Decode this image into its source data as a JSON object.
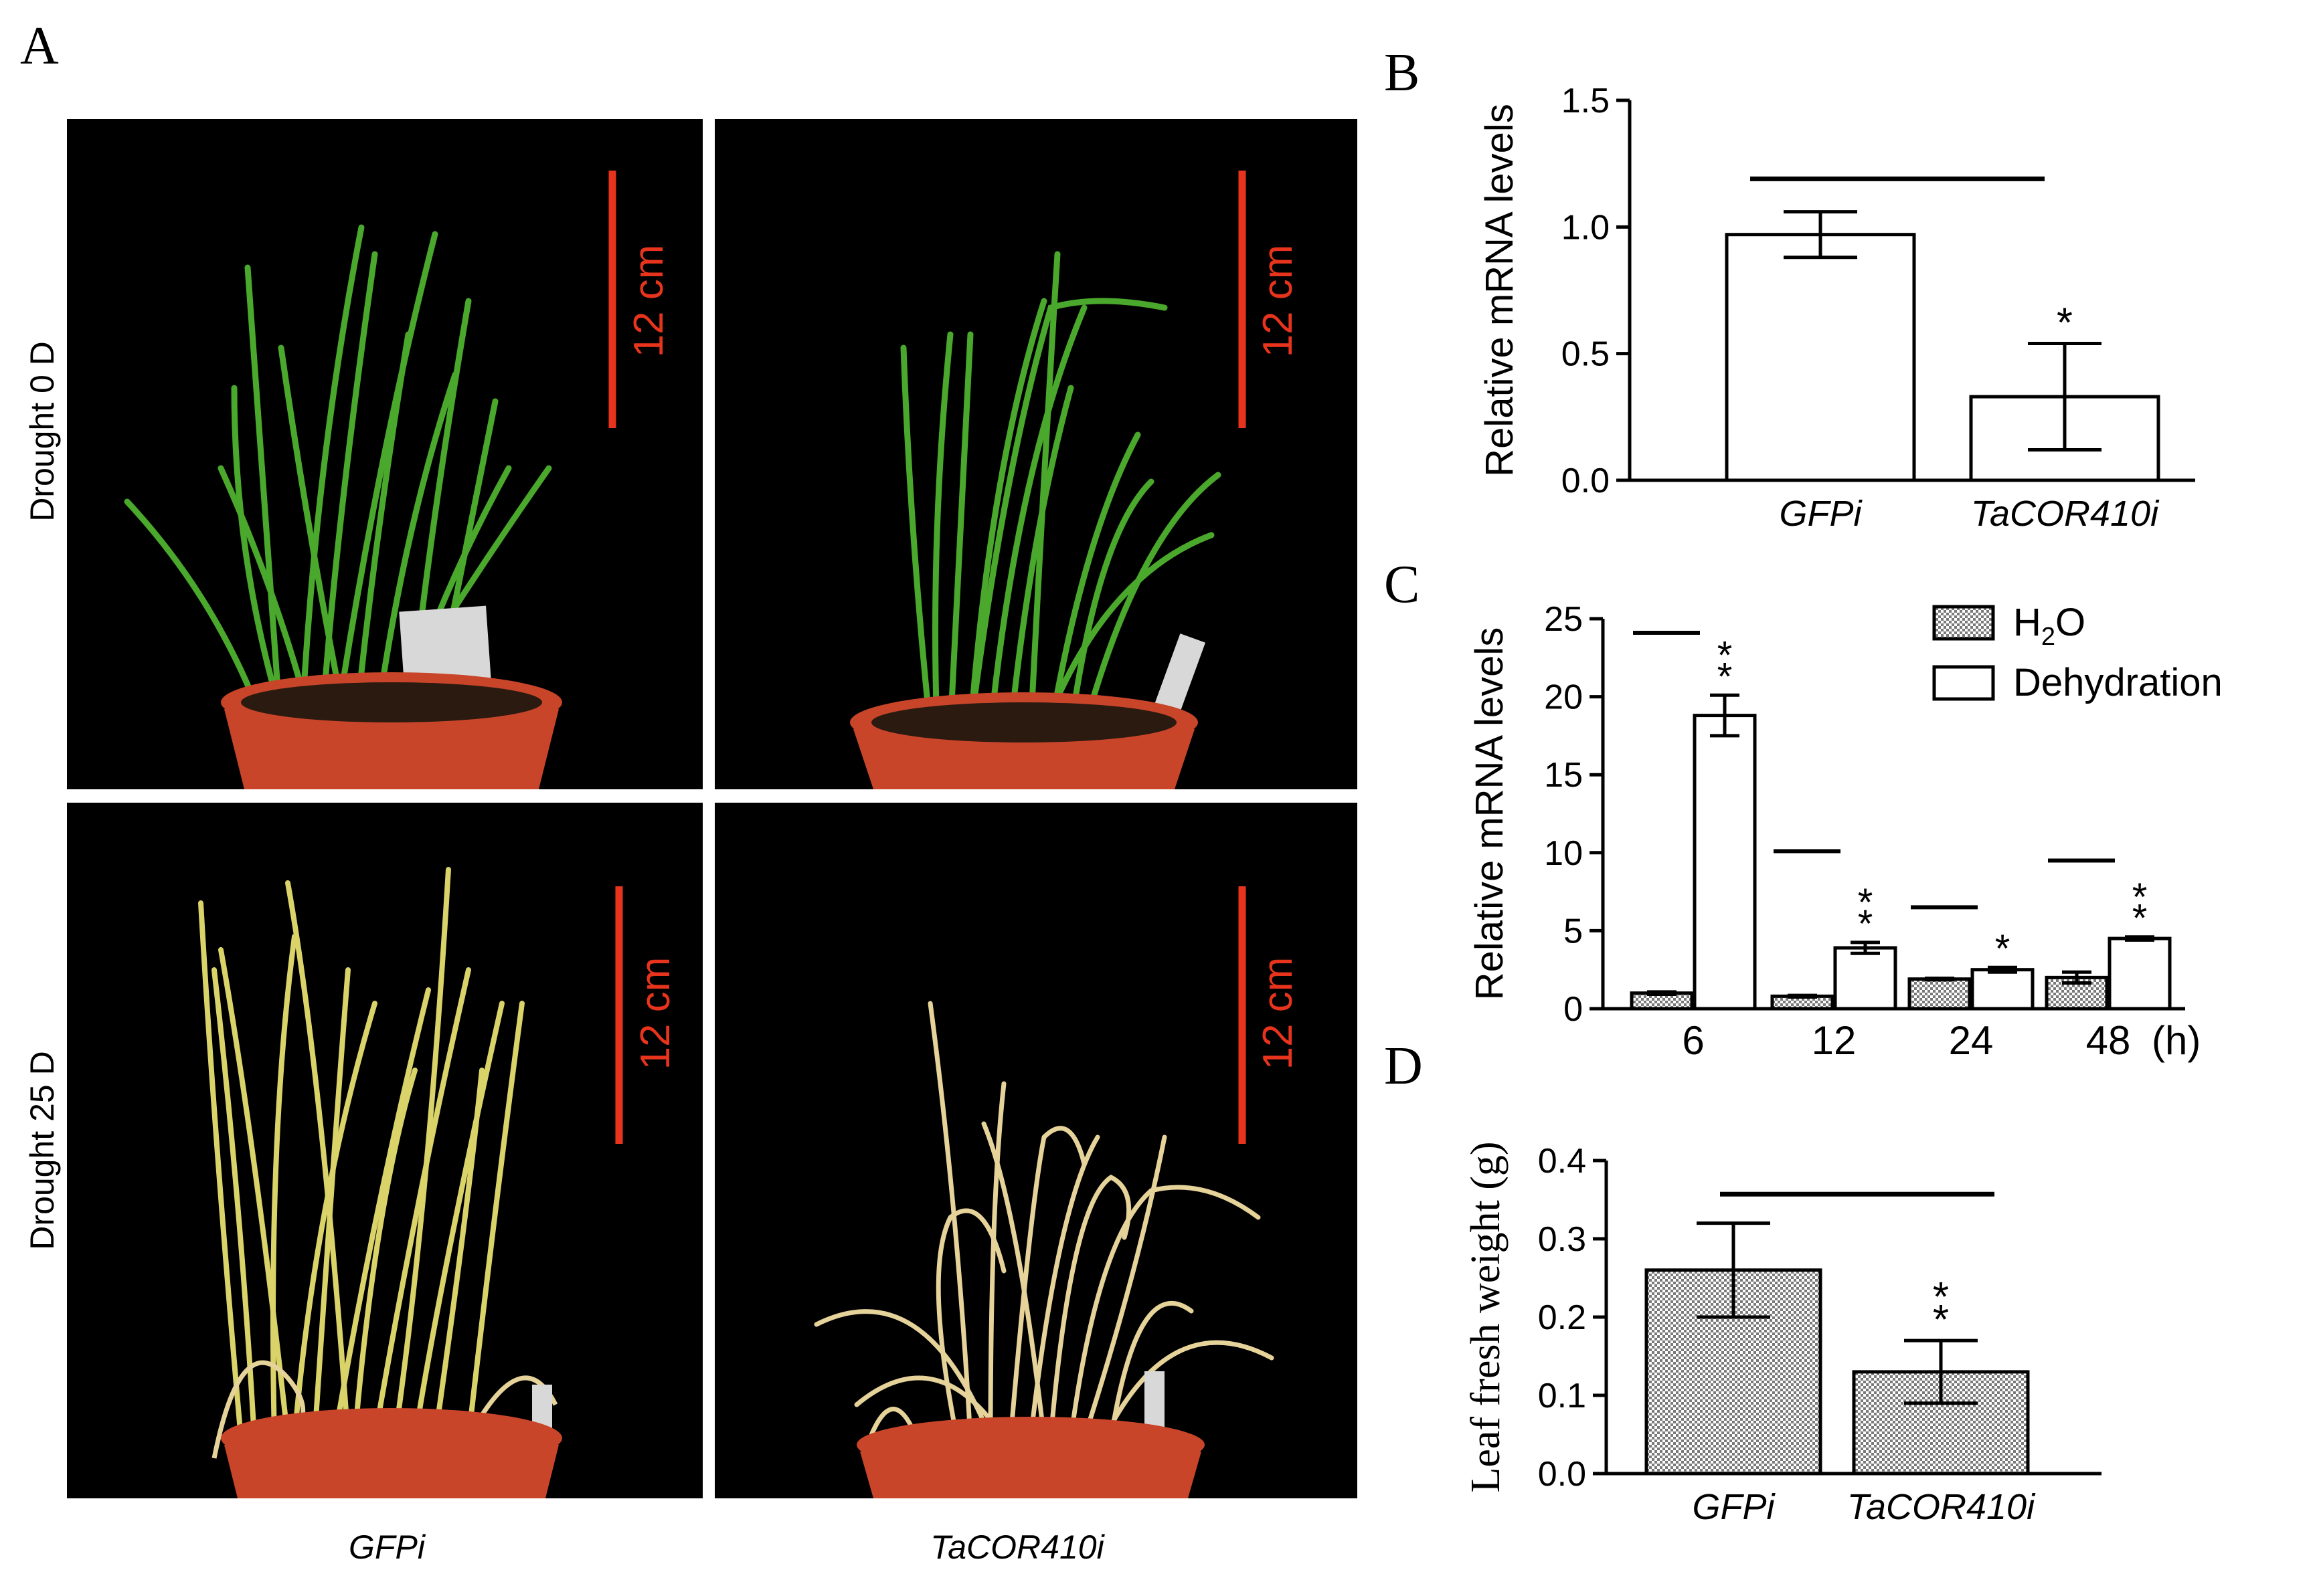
{
  "figure": {
    "panel_letters": {
      "a": "A",
      "b": "B",
      "c": "C",
      "d": "D"
    },
    "photo_rows": [
      "Drought 0 D",
      "Drought 25 D"
    ],
    "photo_cols": [
      "GFPi",
      "TaCOR410i"
    ],
    "scale_bar_label": "12 cm",
    "colors": {
      "scale_bar": "#e8341c",
      "photo_bg": "#000000",
      "pot": "#c9452a",
      "leaf_green": "#4aa82c",
      "leaf_dry": "#e6d39a",
      "leaf_yellow": "#d9d36a"
    }
  },
  "chart_data": [
    {
      "panel": "B",
      "type": "bar",
      "ylabel": "Relative mRNA levels",
      "categories": [
        "GFPi",
        "TaCOR410i"
      ],
      "values": [
        0.97,
        0.33
      ],
      "errors": [
        0.09,
        0.21
      ],
      "ylim": [
        0,
        1.5
      ],
      "yticks": [
        "0.0",
        "0.5",
        "1.0",
        "1.5"
      ],
      "significance": [
        "",
        "*"
      ]
    },
    {
      "panel": "C",
      "type": "bar",
      "ylabel": "Relative mRNA levels",
      "categories": [
        "6",
        "12",
        "24",
        "48"
      ],
      "x_unit": "(h)",
      "series": [
        {
          "name": "H",
          "name_sub": "2",
          "name_tail": "O",
          "values": [
            1.0,
            0.8,
            1.9,
            2.0
          ],
          "errors": [
            0.08,
            0.05,
            0.05,
            0.35
          ]
        },
        {
          "name": "Dehydration",
          "values": [
            18.8,
            3.9,
            2.5,
            4.5
          ],
          "errors": [
            1.3,
            0.35,
            0.15,
            0.1
          ]
        }
      ],
      "ylim": [
        0,
        25
      ],
      "yticks": [
        "0",
        "5",
        "10",
        "15",
        "20",
        "25"
      ],
      "significance": [
        "* *",
        "* *",
        "*",
        "* *"
      ]
    },
    {
      "panel": "D",
      "type": "bar",
      "ylabel": "Leaf fresh weight (g)",
      "categories": [
        "GFPi",
        "TaCOR410i"
      ],
      "values": [
        0.26,
        0.13
      ],
      "errors": [
        0.06,
        0.04
      ],
      "ylim": [
        0,
        0.4
      ],
      "yticks": [
        "0.0",
        "0.1",
        "0.2",
        "0.3",
        "0.4"
      ],
      "significance": [
        "",
        "* *"
      ]
    }
  ]
}
